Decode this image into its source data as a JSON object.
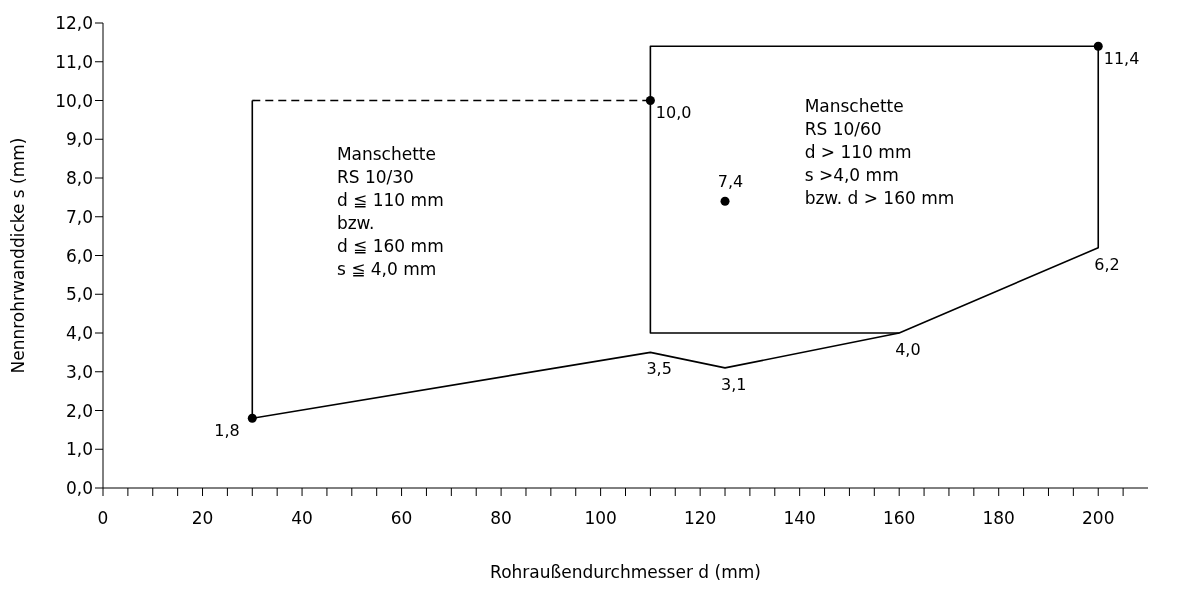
{
  "chart_data": {
    "type": "line",
    "xlabel": "Rohraußendurchmesser d (mm)",
    "ylabel": "Nennrohrwanddicke s (mm)",
    "xlim": [
      0,
      210
    ],
    "xticks": [
      {
        "value": 0,
        "label": "0"
      },
      {
        "value": 5,
        "label": null
      },
      {
        "value": 10,
        "label": null
      },
      {
        "value": 15,
        "label": null
      },
      {
        "value": 20,
        "label": "20"
      },
      {
        "value": 25,
        "label": null
      },
      {
        "value": 30,
        "label": null
      },
      {
        "value": 35,
        "label": null
      },
      {
        "value": 40,
        "label": "40"
      },
      {
        "value": 45,
        "label": null
      },
      {
        "value": 50,
        "label": null
      },
      {
        "value": 55,
        "label": null
      },
      {
        "value": 60,
        "label": "60"
      },
      {
        "value": 65,
        "label": null
      },
      {
        "value": 70,
        "label": null
      },
      {
        "value": 75,
        "label": null
      },
      {
        "value": 80,
        "label": "80"
      },
      {
        "value": 85,
        "label": null
      },
      {
        "value": 90,
        "label": null
      },
      {
        "value": 95,
        "label": null
      },
      {
        "value": 100,
        "label": "100"
      },
      {
        "value": 105,
        "label": null
      },
      {
        "value": 110,
        "label": null
      },
      {
        "value": 115,
        "label": null
      },
      {
        "value": 120,
        "label": "120"
      },
      {
        "value": 125,
        "label": null
      },
      {
        "value": 130,
        "label": null
      },
      {
        "value": 135,
        "label": null
      },
      {
        "value": 140,
        "label": "140"
      },
      {
        "value": 145,
        "label": null
      },
      {
        "value": 150,
        "label": null
      },
      {
        "value": 155,
        "label": null
      },
      {
        "value": 160,
        "label": "160"
      },
      {
        "value": 165,
        "label": null
      },
      {
        "value": 170,
        "label": null
      },
      {
        "value": 175,
        "label": null
      },
      {
        "value": 180,
        "label": "180"
      },
      {
        "value": 185,
        "label": null
      },
      {
        "value": 190,
        "label": null
      },
      {
        "value": 195,
        "label": null
      },
      {
        "value": 200,
        "label": "200"
      },
      {
        "value": 205,
        "label": null
      }
    ],
    "ylim": [
      0,
      12
    ],
    "yticks": [
      {
        "value": 0,
        "label": "0,0"
      },
      {
        "value": 1,
        "label": "1,0"
      },
      {
        "value": 2,
        "label": "2,0"
      },
      {
        "value": 3,
        "label": "3,0"
      },
      {
        "value": 4,
        "label": "4,0"
      },
      {
        "value": 5,
        "label": "5,0"
      },
      {
        "value": 6,
        "label": "6,0"
      },
      {
        "value": 7,
        "label": "7,0"
      },
      {
        "value": 8,
        "label": "8,0"
      },
      {
        "value": 9,
        "label": "9,0"
      },
      {
        "value": 10,
        "label": "10,0"
      },
      {
        "value": 11,
        "label": "11,0"
      },
      {
        "value": 12,
        "label": "12,0"
      }
    ],
    "series": [
      {
        "color": "#000000",
        "line_style": "solid",
        "marker": "none",
        "x": [
          30,
          110,
          125,
          160,
          200,
          200
        ],
        "values": [
          1.8,
          3.5,
          3.1,
          4.0,
          6.2,
          11.4
        ],
        "value_labels": [
          null,
          "3,5",
          "3,1",
          "4,0",
          "6,2",
          null
        ]
      },
      {
        "color": "#000000",
        "line_style": "solid",
        "marker": "none",
        "x": [
          30,
          30
        ],
        "values": [
          1.8,
          10.0
        ]
      },
      {
        "color": "#000000",
        "line_style": "dashed",
        "marker": "none",
        "x": [
          30,
          110
        ],
        "values": [
          10.0,
          10.0
        ]
      },
      {
        "color": "#000000",
        "line_style": "solid",
        "marker": "none",
        "x": [
          160,
          110,
          110,
          200
        ],
        "values": [
          4.0,
          4.0,
          11.4,
          11.4
        ]
      },
      {
        "type": "scatter",
        "color": "#000000",
        "marker": "circle",
        "x": [
          30,
          110,
          125,
          200
        ],
        "values": [
          1.8,
          10.0,
          7.4,
          11.4
        ],
        "value_labels": [
          "1,8",
          "10,0",
          "7,4",
          "11,4"
        ]
      }
    ],
    "annotations": [
      "Manschette\nRS 10/30\nd ≦ 110 mm\nbzw.\nd ≦ 160 mm\ns ≦ 4,0 mm",
      "Manschette\nRS 10/60\nd > 110 mm\ns >4,0 mm\nbzw. d > 160 mm"
    ]
  }
}
